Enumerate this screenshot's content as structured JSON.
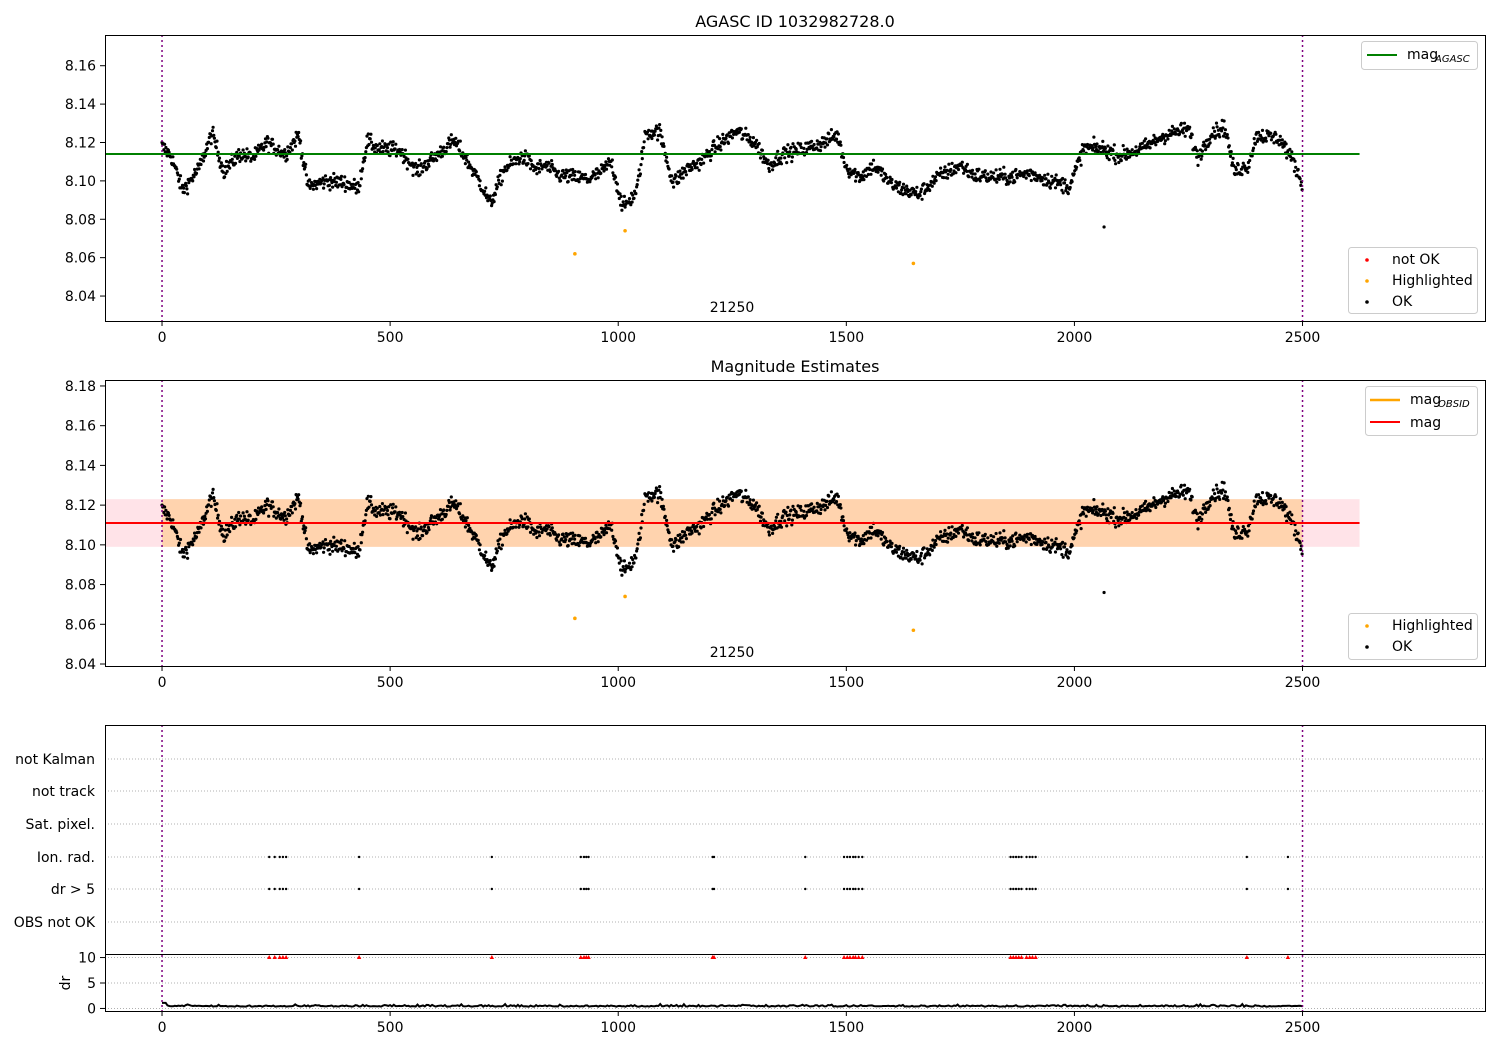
{
  "chart_data": [
    {
      "type": "scatter",
      "title": "AGASC ID 1032982728.0",
      "obsid_label": "21250",
      "xlim": [
        -125,
        2900
      ],
      "ylim": [
        8.027,
        8.176
      ],
      "xticks": [
        0,
        500,
        1000,
        1500,
        2000,
        2500
      ],
      "yticks": [
        8.04,
        8.06,
        8.08,
        8.1,
        8.12,
        8.14,
        8.16
      ],
      "vlines": [
        0,
        2500
      ],
      "hline": {
        "name": "mag",
        "sub": "AGASC",
        "value": 8.114,
        "x_range": [
          -125,
          2625
        ],
        "color": "#008000"
      },
      "legend_top": [
        {
          "name": "mag",
          "sub": "AGASC",
          "color": "#008000",
          "kind": "line"
        }
      ],
      "legend_bottom": [
        {
          "name": "not OK",
          "color": "#ff0000",
          "kind": "dot"
        },
        {
          "name": "Highlighted",
          "color": "#ffa500",
          "kind": "dot"
        },
        {
          "name": "OK",
          "color": "#000000",
          "kind": "dot"
        }
      ],
      "highlighted": [
        [
          905,
          8.062
        ],
        [
          1015,
          8.074
        ],
        [
          1647,
          8.057
        ]
      ],
      "outliers": [
        [
          2065,
          8.076
        ]
      ]
    },
    {
      "type": "scatter",
      "title": "Magnitude Estimates",
      "obsid_label": "21250",
      "xlim": [
        -125,
        2900
      ],
      "ylim": [
        8.039,
        8.183
      ],
      "xticks": [
        0,
        500,
        1000,
        1500,
        2000,
        2500
      ],
      "yticks": [
        8.04,
        8.06,
        8.08,
        8.1,
        8.12,
        8.14,
        8.16,
        8.18
      ],
      "vlines": [
        0,
        2500
      ],
      "hline": {
        "name": "mag",
        "value": 8.111,
        "x_range": [
          -125,
          2625
        ],
        "color": "#ff0000"
      },
      "band_total": [
        8.099,
        8.123
      ],
      "band_obsid": [
        8.099,
        8.123
      ],
      "legend_top": [
        {
          "name": "mag",
          "sub": "OBSID",
          "color": "#ffa500",
          "kind": "line"
        },
        {
          "name": "mag",
          "color": "#ff0000",
          "kind": "line"
        }
      ],
      "legend_bottom": [
        {
          "name": "Highlighted",
          "color": "#ffa500",
          "kind": "dot"
        },
        {
          "name": "OK",
          "color": "#000000",
          "kind": "dot"
        }
      ],
      "highlighted": [
        [
          905,
          8.063
        ],
        [
          1015,
          8.074
        ],
        [
          1647,
          8.057
        ]
      ],
      "outliers": [
        [
          2065,
          8.076
        ]
      ]
    },
    {
      "type": "scatter",
      "title": "",
      "xlim": [
        -125,
        2900
      ],
      "xticks": [
        0,
        500,
        1000,
        1500,
        2000,
        2500
      ],
      "vlines": [
        0,
        2500
      ],
      "flag_rows": [
        "not Kalman",
        "not track",
        "Sat. pixel.",
        "Ion. rad.",
        "dr > 5",
        "OBS not OK"
      ],
      "flag_events": [
        235,
        247,
        258,
        265,
        272,
        432,
        723,
        918,
        925,
        930,
        935,
        1207,
        1210,
        1410,
        1495,
        1502,
        1508,
        1515,
        1520,
        1527,
        1535,
        1860,
        1866,
        1872,
        1878,
        1884,
        1895,
        1902,
        1908,
        1915,
        2378,
        2468
      ],
      "dr_ylabel": "dr",
      "dr_yticks": [
        0,
        5,
        10
      ],
      "dr_ylim": [
        -0.5,
        10.5
      ],
      "dr_capped_value": 10
    }
  ]
}
